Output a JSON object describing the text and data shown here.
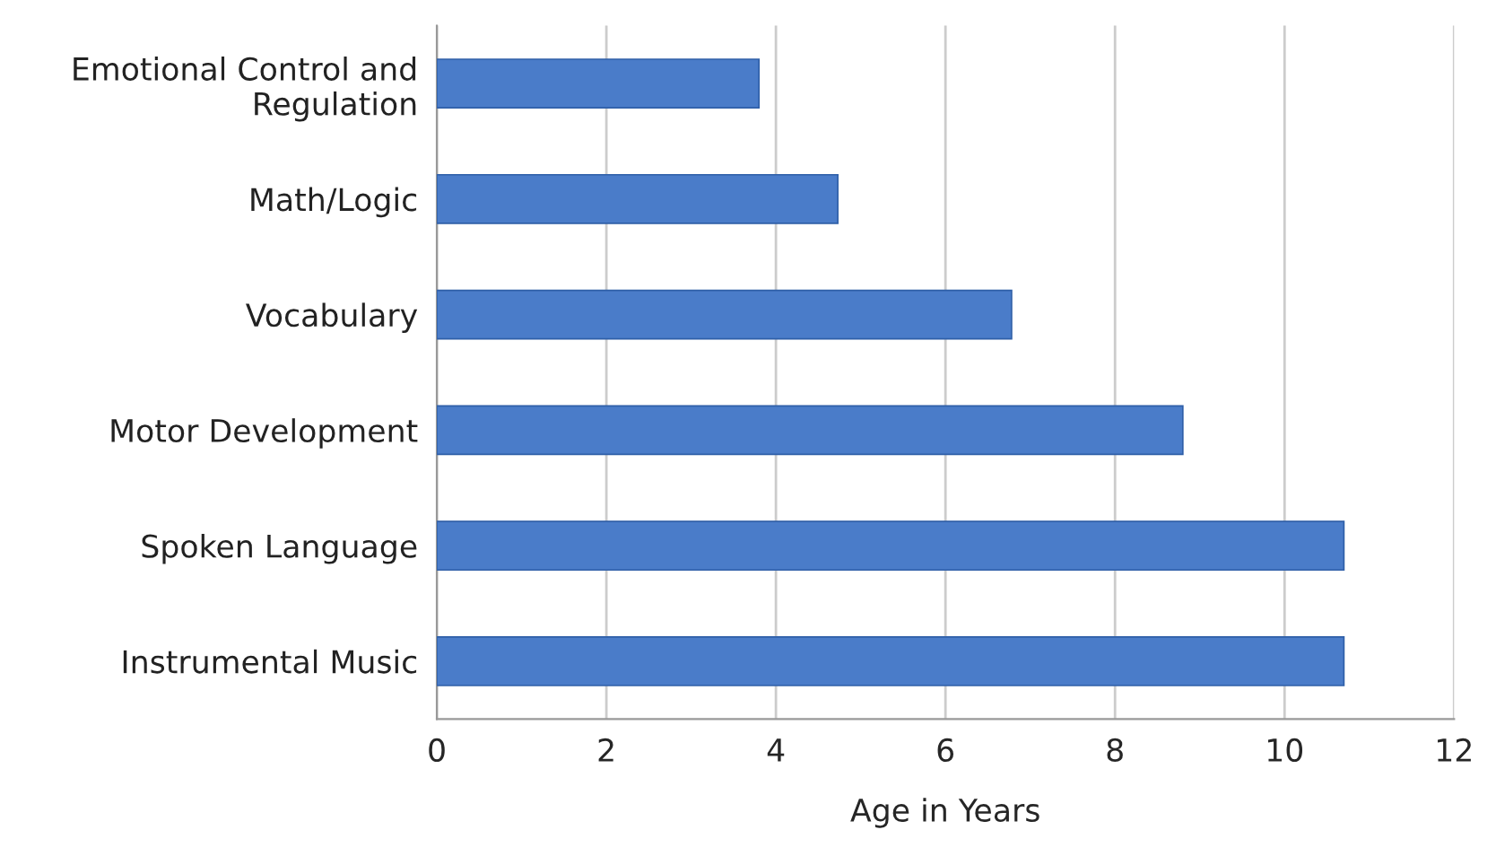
{
  "chart_data": {
    "type": "bar",
    "orientation": "horizontal",
    "categories": [
      "Emotional Control and\nRegulation",
      "Math/Logic",
      "Vocabulary",
      "Motor Development",
      "Spoken Language",
      "Instrumental Music"
    ],
    "values": [
      3.8,
      4.73,
      6.78,
      8.8,
      10.7,
      10.7
    ],
    "color": "#4a7cc9",
    "xlabel": "Age in Years",
    "xlim": [
      0,
      12
    ],
    "xticks": [
      0,
      2,
      4,
      6,
      8,
      10,
      12
    ],
    "grid": "x"
  }
}
